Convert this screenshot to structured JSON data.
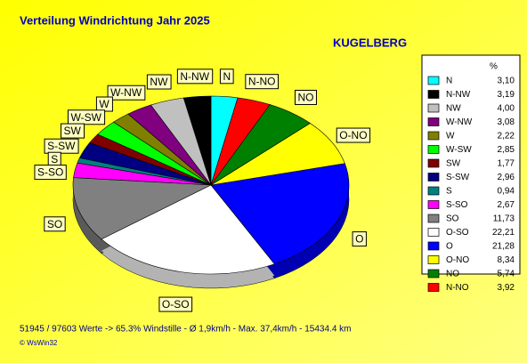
{
  "chart_data": {
    "type": "pie3d",
    "title": "Verteilung Windrichtung   Jahr 2025",
    "subtitle": "KUGELBERG",
    "legend_header": "%",
    "categories": [
      "N",
      "N-NW",
      "NW",
      "W-NW",
      "W",
      "W-SW",
      "SW",
      "S-SW",
      "S",
      "S-SO",
      "SO",
      "O-SO",
      "O",
      "O-NO",
      "NO",
      "N-NO"
    ],
    "values": [
      3.1,
      3.19,
      4.0,
      3.08,
      2.22,
      2.85,
      1.77,
      2.96,
      0.94,
      2.67,
      11.73,
      22.21,
      21.28,
      8.34,
      5.74,
      3.92
    ],
    "value_labels": [
      "3,10",
      "3,19",
      "4,00",
      "3,08",
      "2,22",
      "2,85",
      "1,77",
      "2,96",
      "0,94",
      "2,67",
      "11,73",
      "22,21",
      "21,28",
      "8,34",
      "5,74",
      "3,92"
    ],
    "colors": [
      "#00ffff",
      "#000000",
      "#c0c0c0",
      "#800080",
      "#808000",
      "#00ff00",
      "#800000",
      "#000080",
      "#008080",
      "#ff00ff",
      "#808080",
      "#ffffff",
      "#0000ff",
      "#ffff00",
      "#008000",
      "#ff0000"
    ],
    "footer": "51945 / 97603 Werte  -> 65.3% Windstille   -   Ø 1,9km/h   -  Max. 37,4km/h   -   15434.4 km",
    "copyright": "© WsWin32"
  }
}
